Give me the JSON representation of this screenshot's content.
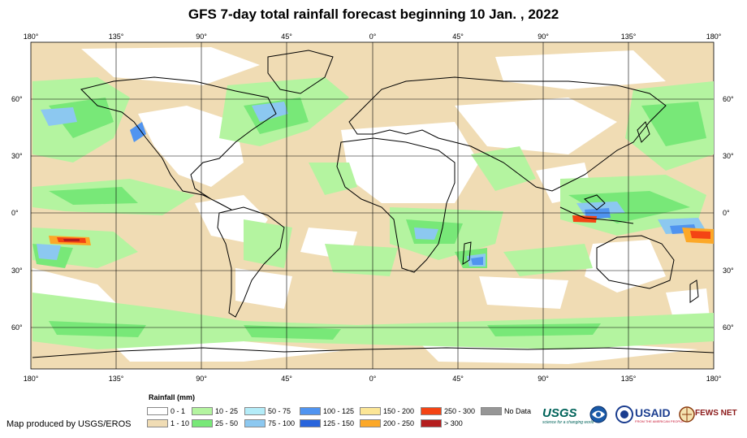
{
  "title": "GFS 7-day total rainfall forecast beginning 10 Jan. , 2022",
  "lon_labels": [
    "180°",
    "135°",
    "90°",
    "45°",
    "0°",
    "45°",
    "90°",
    "135°",
    "180°"
  ],
  "lat_labels": [
    "60°",
    "30°",
    "0°",
    "30°",
    "60°"
  ],
  "legend": {
    "title": "Rainfall (mm)",
    "items": [
      {
        "label": "0 - 1",
        "color": "#ffffff"
      },
      {
        "label": "1 - 10",
        "color": "#f0dcb4"
      },
      {
        "label": "10 - 25",
        "color": "#b4f4a0"
      },
      {
        "label": "25 - 50",
        "color": "#78e878"
      },
      {
        "label": "50 - 75",
        "color": "#b4ecf8"
      },
      {
        "label": "75 - 100",
        "color": "#8cc8f0"
      },
      {
        "label": "100 - 125",
        "color": "#5094f0"
      },
      {
        "label": "125 - 150",
        "color": "#2864dc"
      },
      {
        "label": "150 - 200",
        "color": "#fce696"
      },
      {
        "label": "200 - 250",
        "color": "#fca828"
      },
      {
        "label": "250 - 300",
        "color": "#f44414"
      },
      {
        "label": "> 300",
        "color": "#b41e1e"
      },
      {
        "label": "No Data",
        "color": "#969696"
      }
    ]
  },
  "credit": "Map produced by USGS/EROS",
  "logos": {
    "usgs": "USGS",
    "usgs_tagline": "science for a changing world",
    "usaid": "USAID",
    "usaid_tagline": "FROM THE AMERICAN PEOPLE",
    "fews": "FEWS NET"
  }
}
